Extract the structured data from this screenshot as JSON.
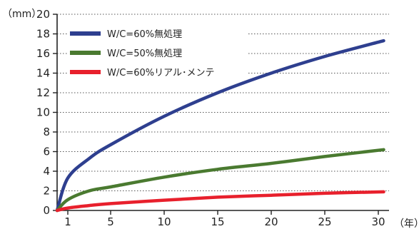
{
  "chart_data": {
    "type": "line",
    "y_unit": "（mm）",
    "x_unit": "（年）",
    "xlim": [
      0,
      31
    ],
    "ylim": [
      0,
      20
    ],
    "x_ticks": [
      1,
      5,
      10,
      15,
      20,
      25,
      30
    ],
    "y_ticks": [
      0,
      2,
      4,
      6,
      8,
      10,
      12,
      14,
      16,
      18,
      20
    ],
    "grid": "horizontal dotted",
    "legend_position": "top-left",
    "series": [
      {
        "name": "W/C=60%無処理",
        "color": "#2e3f8f",
        "points": [
          [
            0,
            0
          ],
          [
            1,
            3.3
          ],
          [
            3,
            5.3
          ],
          [
            5,
            6.7
          ],
          [
            10,
            9.6
          ],
          [
            15,
            12.0
          ],
          [
            20,
            14.0
          ],
          [
            25,
            15.7
          ],
          [
            30.5,
            17.3
          ]
        ]
      },
      {
        "name": "W/C=50%無処理",
        "color": "#4a7a30",
        "points": [
          [
            0,
            0
          ],
          [
            1,
            1.1
          ],
          [
            3,
            2.0
          ],
          [
            5,
            2.4
          ],
          [
            10,
            3.4
          ],
          [
            15,
            4.2
          ],
          [
            20,
            4.8
          ],
          [
            25,
            5.5
          ],
          [
            30.5,
            6.2
          ]
        ]
      },
      {
        "name": "W/C=60%リアル･メンテ",
        "color": "#e8202c",
        "points": [
          [
            0,
            0
          ],
          [
            1,
            0.25
          ],
          [
            3,
            0.5
          ],
          [
            5,
            0.7
          ],
          [
            10,
            1.05
          ],
          [
            15,
            1.35
          ],
          [
            20,
            1.55
          ],
          [
            25,
            1.75
          ],
          [
            30.5,
            1.9
          ]
        ]
      }
    ]
  }
}
